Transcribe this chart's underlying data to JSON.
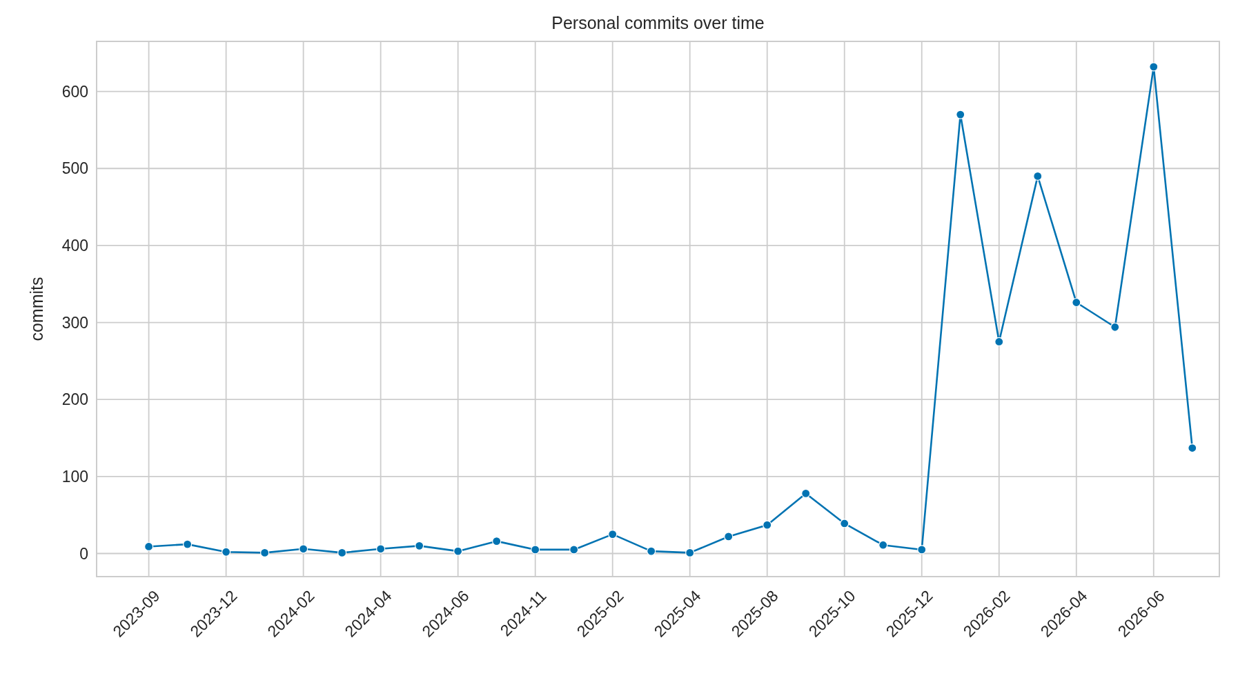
{
  "chart_data": {
    "type": "line",
    "title": "Personal commits over time",
    "ylabel": "commits",
    "categories": [
      "2023-09",
      null,
      "2023-12",
      null,
      "2024-02",
      null,
      "2024-04",
      null,
      "2024-06",
      null,
      "2024-11",
      null,
      "2025-02",
      null,
      "2025-04",
      null,
      "2025-08",
      null,
      "2025-10",
      null,
      "2025-12",
      null,
      "2026-02",
      null,
      "2026-04",
      null,
      "2026-06",
      null
    ],
    "series": [
      {
        "color": "#0173b2",
        "values": [
          9,
          12,
          2,
          1,
          6,
          1,
          6,
          10,
          3,
          16,
          5,
          5,
          25,
          3,
          1,
          22,
          37,
          78,
          39,
          11,
          5,
          570,
          275,
          490,
          326,
          294,
          632,
          137
        ]
      }
    ],
    "ylim": [
      -30,
      665
    ],
    "yticks": [
      0,
      100,
      200,
      300,
      400,
      500,
      600
    ],
    "grid": true,
    "marker": "circle",
    "line_style": "solid"
  }
}
